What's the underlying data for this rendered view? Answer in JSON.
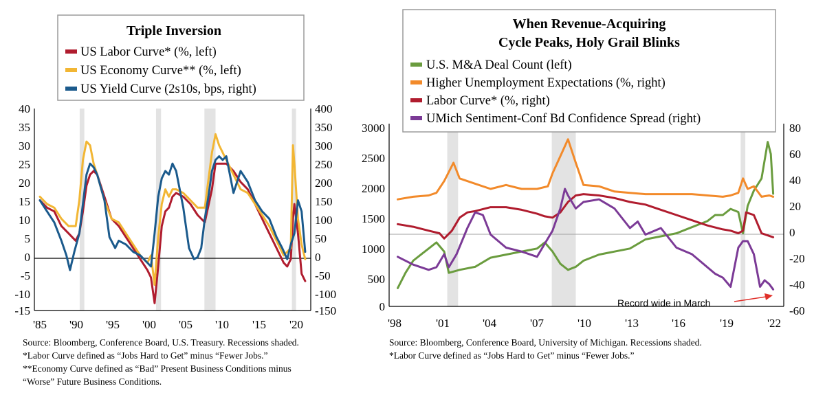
{
  "chart_data": [
    {
      "type": "line",
      "title": "Triple Inversion",
      "x_ticks": [
        "'85",
        "'90",
        "'95",
        "'00",
        "'05",
        "'10",
        "'15",
        "'20"
      ],
      "x_range": [
        1985,
        2022.3
      ],
      "y_left_ticks": [
        "40",
        "35",
        "30",
        "25",
        "20",
        "15",
        "10",
        "5",
        "0",
        "-5",
        "-10",
        "-15"
      ],
      "y_left_range": [
        -15,
        40
      ],
      "y_right_ticks": [
        "400",
        "350",
        "300",
        "250",
        "200",
        "150",
        "100",
        "50",
        "0",
        "-50",
        "-100",
        "-150"
      ],
      "y_right_range": [
        -150,
        400
      ],
      "recessions": [
        [
          1990.55,
          1991.2
        ],
        [
          2001.2,
          2001.9
        ],
        [
          2007.95,
          2009.5
        ],
        [
          2020.15,
          2020.45
        ]
      ],
      "series": [
        {
          "name": "US Labor Curve* (%, left)",
          "color": "#b01c2e",
          "axis": "left",
          "x": [
            1985.0,
            1986.0,
            1987.0,
            1988.0,
            1989.0,
            1990.0,
            1990.5,
            1991.0,
            1991.5,
            1992.0,
            1992.5,
            1993.0,
            1994.0,
            1995.0,
            1996.0,
            1997.0,
            1998.0,
            1999.0,
            2000.0,
            2000.5,
            2001.0,
            2001.5,
            2002.0,
            2002.5,
            2003.0,
            2003.5,
            2004.0,
            2005.0,
            2006.0,
            2007.0,
            2008.0,
            2009.0,
            2009.5,
            2010.0,
            2011.0,
            2012.0,
            2013.0,
            2014.0,
            2015.0,
            2016.0,
            2017.0,
            2018.0,
            2019.0,
            2019.5,
            2020.0,
            2020.3,
            2020.5,
            2021.0,
            2021.5,
            2022.0
          ],
          "y": [
            15,
            13,
            12,
            8,
            6,
            4,
            6,
            12,
            19,
            22,
            23,
            22,
            16,
            10,
            8,
            5,
            2,
            -1,
            -4,
            -6,
            -13,
            -3,
            8,
            12,
            13,
            16,
            17,
            16,
            14,
            11,
            9,
            18,
            25,
            25,
            25,
            23,
            20,
            18,
            14,
            10,
            6,
            2,
            -2,
            -3,
            -1,
            10,
            14,
            6,
            -5,
            -7
          ]
        },
        {
          "name": "US Economy Curve** (%, left)",
          "color": "#f2b634",
          "axis": "left",
          "x": [
            1985.0,
            1986.0,
            1987.0,
            1988.0,
            1989.0,
            1990.0,
            1990.5,
            1991.0,
            1991.5,
            1992.0,
            1992.5,
            1993.0,
            1994.0,
            1995.0,
            1996.0,
            1997.0,
            1998.0,
            1999.0,
            2000.0,
            2000.5,
            2001.0,
            2001.5,
            2002.0,
            2002.5,
            2003.0,
            2003.5,
            2004.0,
            2005.0,
            2006.0,
            2007.0,
            2008.0,
            2009.0,
            2009.5,
            2010.0,
            2011.0,
            2012.0,
            2013.0,
            2014.0,
            2015.0,
            2016.0,
            2017.0,
            2018.0,
            2019.0,
            2019.5,
            2020.0,
            2020.3,
            2020.5,
            2021.0,
            2021.5,
            2022.0
          ],
          "y": [
            16,
            14,
            13,
            10,
            8,
            8,
            15,
            26,
            31,
            30,
            25,
            22,
            15,
            10,
            9,
            6,
            3,
            0,
            -2,
            0,
            -8,
            5,
            14,
            18,
            16,
            18,
            18,
            17,
            15,
            13,
            13,
            28,
            33,
            30,
            26,
            22,
            18,
            17,
            14,
            11,
            8,
            4,
            0,
            1,
            2,
            30,
            25,
            10,
            3,
            -1
          ]
        },
        {
          "name": "US Yield Curve (2s10s, bps, right)",
          "color": "#1b5a8c",
          "axis": "right",
          "x": [
            1985.0,
            1986.0,
            1987.0,
            1988.0,
            1988.7,
            1989.2,
            1989.8,
            1990.5,
            1991.0,
            1991.5,
            1992.0,
            1992.5,
            1993.0,
            1994.0,
            1994.7,
            1995.5,
            1996.0,
            1997.0,
            1998.0,
            1999.0,
            2000.0,
            2000.5,
            2001.0,
            2001.5,
            2002.0,
            2002.5,
            2003.0,
            2003.5,
            2004.0,
            2005.0,
            2005.8,
            2006.5,
            2007.0,
            2007.5,
            2008.0,
            2008.5,
            2009.0,
            2009.5,
            2010.0,
            2010.5,
            2011.0,
            2012.0,
            2013.0,
            2014.0,
            2015.0,
            2016.0,
            2017.0,
            2018.0,
            2018.8,
            2019.5,
            2020.0,
            2020.5,
            2021.0,
            2021.5,
            2022.0
          ],
          "y": [
            150,
            120,
            90,
            40,
            0,
            -40,
            10,
            60,
            140,
            220,
            250,
            240,
            220,
            150,
            50,
            20,
            40,
            30,
            10,
            0,
            -20,
            -30,
            60,
            160,
            210,
            230,
            220,
            250,
            230,
            130,
            20,
            -10,
            -5,
            20,
            100,
            160,
            230,
            260,
            270,
            260,
            270,
            170,
            230,
            200,
            150,
            120,
            100,
            50,
            20,
            -10,
            30,
            60,
            150,
            120,
            10
          ]
        }
      ],
      "notes": [
        "Source: Bloomberg, Conference Board, U.S. Treasury. Recessions shaded.",
        "*Labor Curve defined as “Jobs Hard to Get” minus “Fewer Jobs.”",
        "**Economy Curve defined as “Bad” Present Business Conditions minus",
        "“Worse” Future Business Conditions."
      ]
    },
    {
      "type": "line",
      "title": "When Revenue-Acquiring Cycle Peaks, Holy Grail Blinks",
      "title_lines": [
        "When Revenue-Acquiring",
        "Cycle Peaks, Holy Grail Blinks"
      ],
      "x_ticks": [
        "'98",
        "'01",
        "'04",
        "'07",
        "'10",
        "'13",
        "'16",
        "'19",
        "'22"
      ],
      "x_range": [
        1997.8,
        2022.8
      ],
      "y_left_ticks": [
        "3000",
        "2500",
        "2000",
        "1500",
        "1000",
        "500",
        "0"
      ],
      "y_left_range": [
        0,
        3000
      ],
      "y_right_ticks": [
        "80",
        "60",
        "40",
        "20",
        "0",
        "-20",
        "-40",
        "-60"
      ],
      "y_right_range": [
        -60,
        80
      ],
      "recessions": [
        [
          2001.2,
          2001.9
        ],
        [
          2007.95,
          2009.5
        ],
        [
          2020.15,
          2020.45
        ]
      ],
      "annotation": "Record wide in March",
      "series": [
        {
          "name": "U.S. M&A Deal Count (left)",
          "color": "#6a9c3e",
          "axis": "left",
          "x": [
            1998.0,
            1998.5,
            1999.0,
            1999.5,
            2000.0,
            2000.5,
            2001.0,
            2001.3,
            2002.0,
            2003.0,
            2004.0,
            2005.0,
            2006.0,
            2007.0,
            2007.5,
            2008.0,
            2008.5,
            2009.0,
            2009.5,
            2010.0,
            2011.0,
            2012.0,
            2013.0,
            2014.0,
            2015.0,
            2016.0,
            2017.0,
            2018.0,
            2018.5,
            2019.0,
            2019.5,
            2020.0,
            2020.3,
            2020.6,
            2021.0,
            2021.5,
            2021.9,
            2022.1,
            2022.25
          ],
          "y": [
            300,
            550,
            750,
            850,
            950,
            1050,
            900,
            550,
            600,
            650,
            800,
            850,
            900,
            950,
            1050,
            900,
            700,
            600,
            650,
            750,
            850,
            900,
            950,
            1100,
            1150,
            1200,
            1300,
            1400,
            1500,
            1500,
            1600,
            1550,
            1200,
            1650,
            1900,
            2100,
            2700,
            2500,
            1850
          ]
        },
        {
          "name": "Higher Unemployment Expectations (%, right)",
          "color": "#f28a2a",
          "axis": "right",
          "x": [
            1998.0,
            1999.0,
            2000.0,
            2000.5,
            2001.0,
            2001.6,
            2002.0,
            2003.0,
            2004.0,
            2005.0,
            2006.0,
            2007.0,
            2007.7,
            2008.0,
            2008.5,
            2009.0,
            2009.5,
            2010.0,
            2011.0,
            2012.0,
            2013.0,
            2014.0,
            2015.0,
            2016.0,
            2017.0,
            2018.0,
            2019.0,
            2019.5,
            2020.0,
            2020.3,
            2020.6,
            2021.0,
            2021.5,
            2022.0,
            2022.25
          ],
          "y": [
            22,
            24,
            25,
            27,
            36,
            50,
            38,
            34,
            30,
            33,
            30,
            30,
            32,
            42,
            55,
            68,
            50,
            33,
            32,
            28,
            27,
            26,
            26,
            26,
            26,
            25,
            24,
            25,
            27,
            38,
            30,
            32,
            24,
            25,
            24
          ]
        },
        {
          "name": "Labor Curve* (%, right)",
          "color": "#b01c2e",
          "axis": "right",
          "x": [
            1998.0,
            1999.0,
            2000.0,
            2000.7,
            2001.0,
            2001.5,
            2002.0,
            2002.5,
            2003.0,
            2004.0,
            2005.0,
            2006.0,
            2007.0,
            2007.5,
            2008.0,
            2008.5,
            2009.0,
            2009.5,
            2010.0,
            2011.0,
            2012.0,
            2013.0,
            2014.0,
            2015.0,
            2016.0,
            2017.0,
            2018.0,
            2019.0,
            2019.5,
            2020.0,
            2020.3,
            2020.5,
            2021.0,
            2021.5,
            2022.0,
            2022.25
          ],
          "y": [
            3,
            1,
            -2,
            -4,
            -8,
            -2,
            8,
            12,
            13,
            16,
            16,
            14,
            11,
            9,
            8,
            12,
            20,
            25,
            26,
            25,
            23,
            20,
            18,
            14,
            10,
            6,
            2,
            -1,
            -2,
            -4,
            -2,
            12,
            10,
            -4,
            -6,
            -7
          ]
        },
        {
          "name": "UMich Sentiment-Conf Bd Confidence Spread (right)",
          "color": "#7b3a96",
          "axis": "right",
          "x": [
            1998.0,
            1999.0,
            2000.0,
            2000.5,
            2001.0,
            2001.3,
            2001.8,
            2002.5,
            2003.0,
            2003.5,
            2004.0,
            2005.0,
            2006.0,
            2007.0,
            2007.5,
            2008.0,
            2008.5,
            2008.8,
            2009.0,
            2009.5,
            2010.0,
            2011.0,
            2012.0,
            2013.0,
            2013.5,
            2014.0,
            2015.0,
            2016.0,
            2017.0,
            2018.0,
            2018.5,
            2019.0,
            2019.5,
            2020.0,
            2020.3,
            2020.6,
            2021.0,
            2021.4,
            2021.7,
            2022.0,
            2022.25
          ],
          "y": [
            -22,
            -28,
            -32,
            -30,
            -20,
            -30,
            -20,
            0,
            12,
            10,
            -5,
            -15,
            -18,
            -22,
            -12,
            -2,
            15,
            30,
            25,
            15,
            20,
            22,
            15,
            0,
            5,
            -5,
            0,
            -15,
            -20,
            -30,
            -35,
            -38,
            -45,
            -15,
            -10,
            -10,
            -20,
            -45,
            -40,
            -43,
            -47
          ]
        }
      ],
      "notes": [
        "Source: Bloomberg, Conference Board, University of Michigan. Recessions shaded.",
        "*Labor Curve defined as “Jobs Hard to Get” minus “Fewer Jobs.”"
      ]
    }
  ]
}
